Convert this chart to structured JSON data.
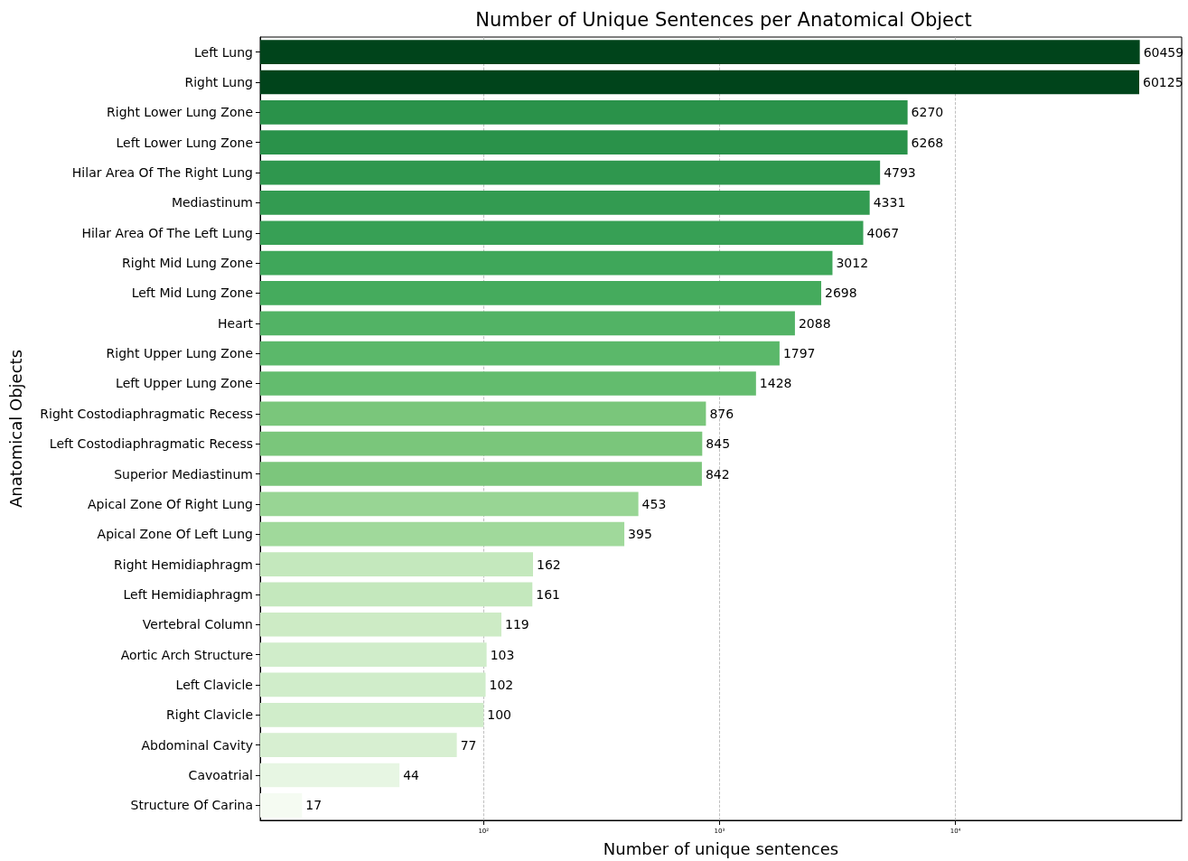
{
  "chart_data": {
    "type": "bar",
    "orientation": "horizontal",
    "title": "Number of Unique Sentences per Anatomical Object",
    "xlabel": "Number of unique sentences",
    "ylabel": "Anatomical Objects",
    "categories": [
      "Left Lung",
      "Right Lung",
      "Right Lower Lung Zone",
      "Left Lower Lung Zone",
      "Hilar Area Of The Right Lung",
      "Mediastinum",
      "Hilar Area Of The Left Lung",
      "Right Mid Lung Zone",
      "Left Mid Lung Zone",
      "Heart",
      "Right Upper Lung Zone",
      "Left Upper Lung Zone",
      "Right Costodiaphragmatic Recess",
      "Left Costodiaphragmatic Recess",
      "Superior Mediastinum",
      "Apical Zone Of Right Lung",
      "Apical Zone Of Left Lung",
      "Right Hemidiaphragm",
      "Left Hemidiaphragm",
      "Vertebral Column",
      "Aortic Arch Structure",
      "Left Clavicle",
      "Right Clavicle",
      "Abdominal Cavity",
      "Cavoatrial",
      "Structure Of Carina"
    ],
    "values": [
      60459,
      60125,
      6270,
      6268,
      4793,
      4331,
      4067,
      3012,
      2698,
      2088,
      1797,
      1428,
      876,
      845,
      842,
      453,
      395,
      162,
      161,
      119,
      103,
      102,
      100,
      77,
      44,
      17
    ],
    "colors": [
      "#00441b",
      "#00441b",
      "#2a924a",
      "#2a924a",
      "#2f974e",
      "#339b51",
      "#37a055",
      "#3fa75a",
      "#45ab5d",
      "#52b365",
      "#5bb86a",
      "#63bc6e",
      "#7ac67b",
      "#7ac67b",
      "#7cc67c",
      "#98d594",
      "#a0d99b",
      "#c4e8bd",
      "#c4e8bd",
      "#cdebc5",
      "#d0edca",
      "#d0edca",
      "#d0edca",
      "#d7efd1",
      "#e7f6e3",
      "#f5fbf2"
    ],
    "log": "x",
    "xlim": [
      11.3,
      91000
    ],
    "xticks": [
      {
        "value": 100,
        "label": "10²"
      },
      {
        "value": 1000,
        "label": "10³"
      },
      {
        "value": 10000,
        "label": "10⁴"
      }
    ],
    "grid": "x",
    "data_labels": true
  }
}
